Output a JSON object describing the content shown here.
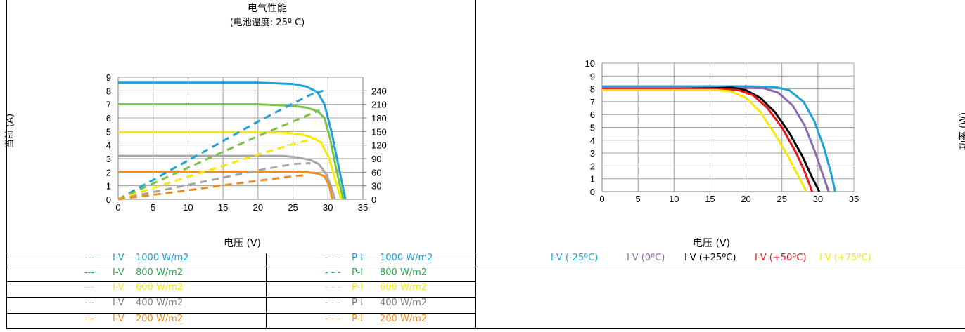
{
  "left": {
    "title": "电气性能",
    "subtitle": "(电池温度: 25º C)",
    "ylabel": "当前 (A)",
    "xlabel": "电压 (V)"
  },
  "right": {
    "xlabel": "电压 (V)",
    "ylabel": "功率 (W)"
  },
  "legend_left": [
    {
      "dash": "---",
      "type": "I-V",
      "irr": "1000 W/m2",
      "color": "#1fa2d8"
    },
    {
      "dash": "---",
      "type": "I-V",
      "irr": "800 W/m2",
      "color": "#27a848"
    },
    {
      "dash": "---",
      "type": "I-V",
      "irr": "600 W/m2",
      "color": "#f5ea0a"
    },
    {
      "dash": "---",
      "type": "I-V",
      "irr": "400 W/m2",
      "color": "#808080"
    },
    {
      "dash": "---",
      "type": "I-V",
      "irr": "200 W/m2",
      "color": "#f28c1c"
    }
  ],
  "legend_mid": [
    {
      "dash": "- - -",
      "type": "P-I",
      "irr": "1000 W/m2",
      "color": "#1fa2d8"
    },
    {
      "dash": "- - -",
      "type": "P-I",
      "irr": "800 W/m2",
      "color": "#27a848"
    },
    {
      "dash": "- - -",
      "type": "P-I",
      "irr": "600 W/m2",
      "color": "#f5ea0a"
    },
    {
      "dash": "- - -",
      "type": "P-I",
      "irr": "400 W/m2",
      "color": "#808080"
    },
    {
      "dash": "- - -",
      "type": "P-I",
      "irr": "200 W/m2",
      "color": "#f28c1c"
    }
  ],
  "legend_right": [
    {
      "label": "I-V (-25ºC)",
      "color": "#1fa2d8"
    },
    {
      "label": "I-V (0ºC)",
      "color": "#8e6bb0"
    },
    {
      "label": "I-V (+25ºC)",
      "color": "#000000"
    },
    {
      "label": "I-V (+50ºC)",
      "color": "#e8161b"
    },
    {
      "label": "I-V (+75ºC)",
      "color": "#f5ea0a"
    }
  ],
  "chart_data": [
    {
      "type": "line",
      "title": "电气性能",
      "subtitle": "(电池温度: 25º C)",
      "xlabel": "电压 (V)",
      "ylabel": "当前 (A)",
      "xlim": [
        0,
        35
      ],
      "ylim": [
        0,
        9
      ],
      "y2lim": [
        0,
        270
      ],
      "xticks": [
        0,
        5,
        10,
        15,
        20,
        25,
        30,
        35
      ],
      "yticks": [
        0,
        1,
        2,
        3,
        4,
        5,
        6,
        7,
        8,
        9
      ],
      "y2ticks": [
        0,
        30,
        60,
        90,
        120,
        150,
        180,
        210,
        240
      ],
      "grid": true,
      "series": [
        {
          "name": "I-V 1000 W/m2",
          "color": "#1fa2d8",
          "style": "solid",
          "x": [
            0,
            10,
            20,
            25,
            27,
            28.5,
            29.5,
            30.5,
            31.5,
            32.5
          ],
          "y": [
            8.6,
            8.6,
            8.6,
            8.5,
            8.3,
            7.9,
            7.0,
            5.0,
            2.5,
            0
          ]
        },
        {
          "name": "I-V 800 W/m2",
          "color": "#7dc242",
          "style": "solid",
          "x": [
            0,
            10,
            20,
            25,
            27,
            28.5,
            29.5,
            30.3,
            31.2,
            32.2
          ],
          "y": [
            7.0,
            7.0,
            7.0,
            6.9,
            6.75,
            6.5,
            6.0,
            4.5,
            2.2,
            0
          ]
        },
        {
          "name": "I-V 600 W/m2",
          "color": "#f5ea0a",
          "style": "solid",
          "x": [
            0,
            10,
            20,
            24,
            26,
            27.5,
            29,
            30.2,
            31.0,
            31.9
          ],
          "y": [
            4.95,
            4.95,
            4.95,
            4.9,
            4.8,
            4.6,
            4.2,
            3.0,
            1.5,
            0
          ]
        },
        {
          "name": "I-V 400 W/m2",
          "color": "#a6a6a6",
          "style": "solid",
          "x": [
            0,
            10,
            20,
            23.5,
            25.5,
            27.5,
            28.7,
            29.8,
            30.4,
            31.0
          ],
          "y": [
            3.2,
            3.2,
            3.2,
            3.2,
            3.1,
            2.9,
            2.6,
            1.8,
            1.0,
            0
          ]
        },
        {
          "name": "I-V 200 W/m2",
          "color": "#f28c1c",
          "style": "solid",
          "x": [
            0,
            10,
            20,
            25,
            27,
            28.5,
            29.5,
            30.2,
            30.6
          ],
          "y": [
            2.05,
            2.05,
            2.05,
            2.05,
            2.0,
            1.9,
            1.7,
            1.0,
            0
          ]
        },
        {
          "name": "P-I 1000 W/m2",
          "color": "#1fa2d8",
          "style": "dashed",
          "x": [
            0,
            5,
            10,
            15,
            20,
            25,
            28,
            29.3
          ],
          "y2": [
            0,
            43,
            86,
            129,
            172,
            212,
            235,
            240
          ]
        },
        {
          "name": "P-I 800 W/m2",
          "color": "#7dc242",
          "style": "dashed",
          "x": [
            0,
            5,
            10,
            15,
            20,
            25,
            28.8
          ],
          "y2": [
            0,
            35,
            70,
            105,
            140,
            172,
            197
          ]
        },
        {
          "name": "P-I 600 W/m2",
          "color": "#f5ea0a",
          "style": "dashed",
          "x": [
            0,
            5,
            10,
            15,
            20,
            25,
            28.3
          ],
          "y2": [
            0,
            25,
            50,
            74,
            99,
            122,
            135
          ]
        },
        {
          "name": "P-I 400 W/m2",
          "color": "#a6a6a6",
          "style": "dashed",
          "x": [
            0,
            5,
            10,
            15,
            20,
            25,
            27.5
          ],
          "y2": [
            0,
            16,
            32,
            48,
            64,
            78,
            80
          ]
        },
        {
          "name": "P-I 200 W/m2",
          "color": "#f28c1c",
          "style": "dashed",
          "x": [
            0,
            5,
            10,
            15,
            20,
            25,
            26.5
          ],
          "y2": [
            0,
            10,
            20,
            31,
            41,
            51,
            53
          ]
        }
      ]
    },
    {
      "type": "line",
      "xlabel": "电压 (V)",
      "ylabel": "功率 (W)",
      "xlim": [
        0,
        35
      ],
      "ylim": [
        0,
        10
      ],
      "xticks": [
        0,
        5,
        10,
        15,
        20,
        25,
        30,
        35
      ],
      "yticks": [
        0,
        1,
        2,
        3,
        4,
        5,
        6,
        7,
        8,
        9,
        10
      ],
      "grid": true,
      "series": [
        {
          "name": "I-V (-25ºC)",
          "color": "#1fa2d8",
          "x": [
            0,
            10,
            20,
            24,
            26,
            28,
            29.5,
            30.8,
            31.8,
            32.4
          ],
          "y": [
            8.2,
            8.2,
            8.2,
            8.15,
            7.9,
            7.0,
            5.5,
            3.5,
            1.5,
            0
          ]
        },
        {
          "name": "I-V (0ºC)",
          "color": "#8e6bb0",
          "x": [
            0,
            10,
            20,
            22.5,
            24.5,
            26.5,
            28.2,
            29.6,
            30.7,
            31.5
          ],
          "y": [
            8.1,
            8.1,
            8.1,
            8.05,
            7.7,
            6.7,
            5.1,
            3.1,
            1.3,
            0
          ]
        },
        {
          "name": "I-V (+25ºC)",
          "color": "#000000",
          "x": [
            0,
            10,
            16,
            18,
            20,
            22,
            24,
            26,
            27.8,
            29.2,
            30.2
          ],
          "y": [
            8.0,
            8.0,
            8.05,
            8.1,
            7.9,
            7.3,
            6.2,
            4.6,
            2.8,
            1.1,
            0
          ]
        },
        {
          "name": "I-V (+50ºC)",
          "color": "#e8161b",
          "x": [
            0,
            10,
            16,
            19,
            21,
            23,
            25,
            27,
            28.2,
            29.2
          ],
          "y": [
            8.0,
            8.0,
            8.0,
            7.9,
            7.5,
            6.5,
            5.0,
            3.0,
            1.5,
            0
          ]
        },
        {
          "name": "I-V (+75ºC)",
          "color": "#f5ea0a",
          "x": [
            0,
            10,
            16,
            18,
            20,
            22,
            24,
            25.8,
            27.2,
            28.4
          ],
          "y": [
            7.9,
            7.9,
            7.9,
            7.8,
            7.3,
            6.2,
            4.5,
            2.8,
            1.3,
            0
          ]
        }
      ]
    }
  ]
}
